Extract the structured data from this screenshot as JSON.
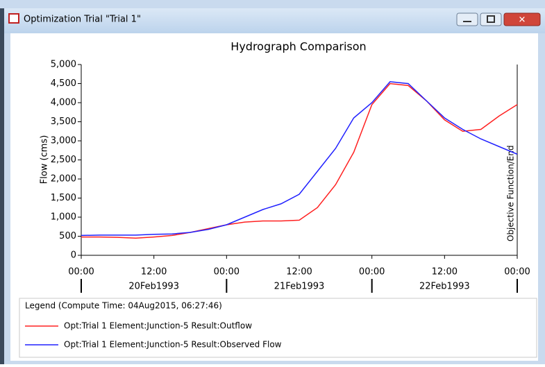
{
  "window": {
    "title": "Optimization Trial \"Trial 1\""
  },
  "chart_data": {
    "type": "line",
    "title": "Hydrograph Comparison",
    "y_label": "Flow (cms)",
    "legend_title": "Legend (Compute Time: 04Aug2015, 06:27:46)",
    "x": [
      "20Feb1993 00:00",
      "20Feb1993 03:00",
      "20Feb1993 06:00",
      "20Feb1993 09:00",
      "20Feb1993 12:00",
      "20Feb1993 15:00",
      "20Feb1993 18:00",
      "20Feb1993 21:00",
      "21Feb1993 00:00",
      "21Feb1993 03:00",
      "21Feb1993 06:00",
      "21Feb1993 09:00",
      "21Feb1993 12:00",
      "21Feb1993 15:00",
      "21Feb1993 18:00",
      "21Feb1993 21:00",
      "22Feb1993 00:00",
      "22Feb1993 03:00",
      "22Feb1993 06:00",
      "22Feb1993 09:00",
      "22Feb1993 12:00",
      "22Feb1993 15:00",
      "22Feb1993 18:00",
      "22Feb1993 21:00",
      "23Feb1993 00:00"
    ],
    "series": [
      {
        "name": "Opt:Trial 1 Element:Junction-5 Result:Outflow",
        "color": "#ff2020",
        "values": [
          480,
          480,
          470,
          450,
          480,
          520,
          600,
          700,
          800,
          870,
          900,
          900,
          920,
          1250,
          1850,
          2700,
          3950,
          4500,
          4450,
          4050,
          3550,
          3250,
          3300,
          3650,
          3950
        ]
      },
      {
        "name": "Opt:Trial 1 Element:Junction-5 Result:Observed Flow",
        "color": "#2020ff",
        "values": [
          520,
          530,
          530,
          530,
          550,
          560,
          600,
          680,
          800,
          1000,
          1200,
          1350,
          1600,
          2200,
          2800,
          3600,
          4000,
          4550,
          4500,
          4050,
          3600,
          3300,
          3050,
          2850,
          2650
        ]
      }
    ],
    "xlim": [
      "20Feb1993 00:00",
      "23Feb1993 00:00"
    ],
    "xticks": [
      {
        "value": "20Feb1993 00:00",
        "label": "00:00"
      },
      {
        "value": "20Feb1993 12:00",
        "label": "12:00"
      },
      {
        "value": "21Feb1993 00:00",
        "label": "00:00"
      },
      {
        "value": "21Feb1993 12:00",
        "label": "12:00"
      },
      {
        "value": "22Feb1993 00:00",
        "label": "00:00"
      },
      {
        "value": "22Feb1993 12:00",
        "label": "12:00"
      },
      {
        "value": "23Feb1993 00:00",
        "label": "00:00"
      }
    ],
    "date_ticks": [
      {
        "value": "20Feb1993 12:00",
        "label": "20Feb1993"
      },
      {
        "value": "21Feb1993 12:00",
        "label": "21Feb1993"
      },
      {
        "value": "22Feb1993 12:00",
        "label": "22Feb1993"
      }
    ],
    "ylim": [
      0,
      5000
    ],
    "yticks": [
      0,
      {
        "value": 500,
        "label": "500"
      },
      {
        "value": 1000,
        "label": "1,000"
      },
      {
        "value": 1500,
        "label": "1,500"
      },
      {
        "value": 2000,
        "label": "2,000"
      },
      {
        "value": 2500,
        "label": "2,500"
      },
      {
        "value": 3000,
        "label": "3,000"
      },
      {
        "value": 3500,
        "label": "3,500"
      },
      {
        "value": 4000,
        "label": "4,000"
      },
      {
        "value": 4500,
        "label": "4,500"
      },
      {
        "value": 5000,
        "label": "5,000"
      }
    ],
    "annotations": [
      {
        "text": "Objective Function/End",
        "x": "23Feb1993 00:00"
      }
    ]
  }
}
